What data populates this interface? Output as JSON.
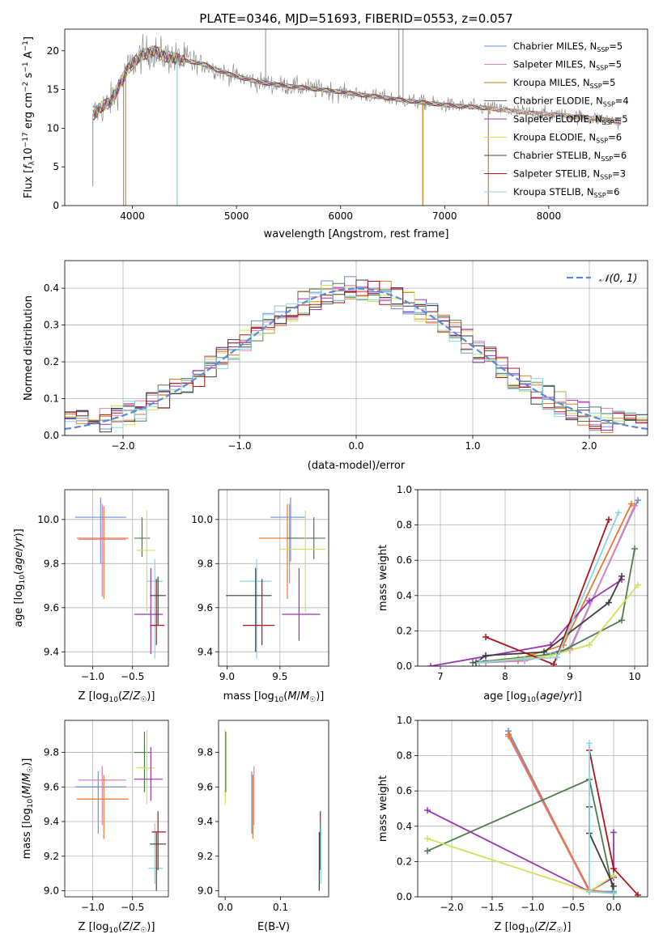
{
  "figure": {
    "title": "PLATE=0346, MJD=51693, FIBERID=0553, z=0.057"
  },
  "chart_data": [
    {
      "id": "spectrum",
      "type": "line",
      "xlabel": "wavelength [Angstrom, rest frame]",
      "ylabel": "Flux [f_λ 10^-17 erg cm^-2 s^-1 A^-1]",
      "xlim": [
        3350,
        8950
      ],
      "ylim": [
        0,
        22.8
      ],
      "xticks": [
        4000,
        5000,
        6000,
        7000,
        8000
      ],
      "yticks": [
        0,
        5,
        10,
        15,
        20
      ],
      "grid": false,
      "legend_position": "top-right",
      "data_color": "#808080",
      "series": [
        {
          "name": "Chabrier MILES, N_SSP=5",
          "color": "#6a8fd6"
        },
        {
          "name": "Salpeter MILES, N_SSP=5",
          "color": "#e07fb6"
        },
        {
          "name": "Kroupa MILES, N_SSP=5",
          "color": "#c07c10"
        },
        {
          "name": "Chabrier ELODIE, N_SSP=4",
          "color": "#4f7a4f"
        },
        {
          "name": "Salpeter ELODIE, N_SSP=5",
          "color": "#9b34b0"
        },
        {
          "name": "Kroupa ELODIE, N_SSP=6",
          "color": "#cde25a"
        },
        {
          "name": "Chabrier STELIB, N_SSP=6",
          "color": "#3d3d3d"
        },
        {
          "name": "Salpeter STELIB, N_SSP=3",
          "color": "#b0141a"
        },
        {
          "name": "Kroupa STELIB, N_SSP=6",
          "color": "#88d6dc"
        }
      ],
      "continuum": {
        "x": [
          3620,
          3700,
          3800,
          3900,
          3960,
          4050,
          4100,
          4200,
          4300,
          4400,
          4500,
          4600,
          4700,
          4800,
          4900,
          5000,
          5200,
          5400,
          5600,
          5800,
          6000,
          6200,
          6400,
          6600,
          6800,
          7000,
          7200,
          7400,
          7600,
          7800,
          8000,
          8200,
          8400,
          8600,
          8700
        ],
        "y": [
          11.8,
          12.6,
          13.6,
          16.2,
          17.8,
          18.9,
          19.6,
          19.9,
          19.4,
          19.0,
          18.8,
          18.5,
          18.2,
          17.6,
          17.1,
          16.7,
          16.0,
          15.6,
          15.3,
          15.0,
          14.7,
          14.3,
          14.0,
          13.6,
          13.3,
          13.0,
          12.8,
          12.6,
          12.3,
          12.0,
          11.8,
          11.6,
          11.3,
          11.0,
          10.8
        ]
      }
    },
    {
      "id": "residuals",
      "type": "line",
      "xlabel": "(data-model)/error",
      "ylabel": "Normed distribution",
      "xlim": [
        -2.5,
        2.5
      ],
      "ylim": [
        0,
        0.475
      ],
      "xticks": [
        -2,
        -1,
        0,
        1,
        2
      ],
      "yticks": [
        0.0,
        0.1,
        0.2,
        0.3,
        0.4
      ],
      "grid": true,
      "legend_position": "top-right",
      "gaussian_label": "𝒩(0, 1)",
      "gaussian_color": "#5b8ad6"
    },
    {
      "id": "age-vs-z",
      "type": "scatter",
      "xlabel": "Z [log10(Z/Z☉)]",
      "ylabel": "age  [log10(age/yr)]",
      "xlim": [
        -1.35,
        -0.05
      ],
      "ylim": [
        9.335,
        10.135
      ],
      "xticks": [
        -1.0,
        -0.5
      ],
      "yticks": [
        9.4,
        9.6,
        9.8,
        10.0
      ],
      "grid": true,
      "points": [
        {
          "c": "#6a8fd6",
          "x": -0.9,
          "xl": -1.22,
          "xh": -0.58,
          "y": 10.01,
          "yl": 9.8,
          "yh": 10.1
        },
        {
          "c": "#e07fb6",
          "x": -0.88,
          "xl": -1.18,
          "xh": -0.58,
          "y": 9.91,
          "yl": 9.65,
          "yh": 10.07
        },
        {
          "c": "#e8772a",
          "x": -0.86,
          "xl": -1.2,
          "xh": -0.55,
          "y": 9.915,
          "yl": 9.64,
          "yh": 10.06
        },
        {
          "c": "#4f7a4f",
          "x": -0.38,
          "xl": -0.48,
          "xh": -0.28,
          "y": 9.915,
          "yl": 9.83,
          "yh": 10.01
        },
        {
          "c": "#cde25a",
          "x": -0.32,
          "xl": -0.45,
          "xh": -0.22,
          "y": 9.86,
          "yl": 9.58,
          "yh": 10.04
        },
        {
          "c": "#88d6dc",
          "x": -0.22,
          "xl": -0.32,
          "xh": -0.12,
          "y": 9.72,
          "yl": 9.37,
          "yh": 9.82
        },
        {
          "c": "#9b34b0",
          "x": -0.27,
          "xl": -0.48,
          "xh": -0.12,
          "y": 9.57,
          "yl": 9.39,
          "yh": 9.78
        },
        {
          "c": "#3d3d3d",
          "x": -0.18,
          "xl": -0.28,
          "xh": -0.08,
          "y": 9.655,
          "yl": 9.52,
          "yh": 9.74
        },
        {
          "c": "#b0141a",
          "x": -0.2,
          "xl": -0.28,
          "xh": -0.1,
          "y": 9.52,
          "yl": 9.43,
          "yh": 9.73
        }
      ]
    },
    {
      "id": "age-vs-mass",
      "type": "scatter",
      "xlabel": "mass [log10(M/M☉)]",
      "ylabel": "",
      "xlim": [
        8.92,
        9.96
      ],
      "ylim": [
        9.335,
        10.135
      ],
      "xticks": [
        9.0,
        9.5
      ],
      "yticks": [
        9.4,
        9.6,
        9.8,
        10.0
      ],
      "grid": true,
      "points": [
        {
          "c": "#6a8fd6",
          "x": 9.6,
          "xl": 9.41,
          "xh": 9.74,
          "y": 10.01,
          "yl": 9.81,
          "yh": 10.1
        },
        {
          "c": "#e07fb6",
          "x": 9.59,
          "xl": 9.33,
          "xh": 9.72,
          "y": 9.915,
          "yl": 9.71,
          "yh": 10.07
        },
        {
          "c": "#e8772a",
          "x": 9.57,
          "xl": 9.3,
          "xh": 9.67,
          "y": 9.915,
          "yl": 9.64,
          "yh": 10.07
        },
        {
          "c": "#4f7a4f",
          "x": 9.82,
          "xl": 9.57,
          "xh": 9.93,
          "y": 9.915,
          "yl": 9.82,
          "yh": 10.01
        },
        {
          "c": "#cde25a",
          "x": 9.74,
          "xl": 9.5,
          "xh": 9.93,
          "y": 9.865,
          "yl": 9.58,
          "yh": 10.04
        },
        {
          "c": "#88d6dc",
          "x": 9.28,
          "xl": 9.12,
          "xh": 9.42,
          "y": 9.72,
          "yl": 9.37,
          "yh": 9.82
        },
        {
          "c": "#9b34b0",
          "x": 9.68,
          "xl": 9.52,
          "xh": 9.88,
          "y": 9.57,
          "yl": 9.45,
          "yh": 9.78
        },
        {
          "c": "#3d3d3d",
          "x": 9.27,
          "xl": 8.99,
          "xh": 9.42,
          "y": 9.655,
          "yl": 9.4,
          "yh": 9.78
        },
        {
          "c": "#b0141a",
          "x": 9.33,
          "xl": 9.15,
          "xh": 9.45,
          "y": 9.52,
          "yl": 9.43,
          "yh": 9.73
        }
      ]
    },
    {
      "id": "weight-vs-age",
      "type": "line",
      "xlabel": "age  [log10(age/yr)]",
      "ylabel": "mass weight",
      "xlim": [
        6.65,
        10.2
      ],
      "ylim": [
        0,
        1.0
      ],
      "xticks": [
        7,
        8,
        9,
        10
      ],
      "yticks": [
        0.0,
        0.2,
        0.4,
        0.6,
        0.8,
        1.0
      ],
      "grid": true,
      "series": [
        {
          "c": "#6a8fd6",
          "x": [
            7.7,
            8.2,
            9.0,
            10.05
          ],
          "y": [
            0.03,
            0.03,
            0.1,
            0.94
          ]
        },
        {
          "c": "#e07fb6",
          "x": [
            7.7,
            8.3,
            9.0,
            10.0
          ],
          "y": [
            0.02,
            0.03,
            0.09,
            0.91
          ]
        },
        {
          "c": "#e8772a",
          "x": [
            7.6,
            8.2,
            8.9,
            9.95
          ],
          "y": [
            0.02,
            0.04,
            0.12,
            0.92
          ]
        },
        {
          "c": "#4f7a4f",
          "x": [
            7.5,
            8.8,
            9.8,
            10.0
          ],
          "y": [
            0.02,
            0.07,
            0.26,
            0.665
          ]
        },
        {
          "c": "#9b34b0",
          "x": [
            6.85,
            8.7,
            9.3,
            9.8
          ],
          "y": [
            0.0,
            0.12,
            0.37,
            0.49
          ]
        },
        {
          "c": "#cde25a",
          "x": [
            7.6,
            8.7,
            9.3,
            10.05
          ],
          "y": [
            0.02,
            0.06,
            0.12,
            0.46
          ]
        },
        {
          "c": "#3d3d3d",
          "x": [
            7.55,
            7.7,
            8.6,
            9.6,
            9.8
          ],
          "y": [
            0.02,
            0.06,
            0.08,
            0.36,
            0.51
          ]
        },
        {
          "c": "#b0141a",
          "x": [
            7.7,
            8.75,
            9.6
          ],
          "y": [
            0.165,
            0.01,
            0.83
          ]
        },
        {
          "c": "#88d6dc",
          "x": [
            7.6,
            8.3,
            8.8,
            9.75
          ],
          "y": [
            0.02,
            0.04,
            0.05,
            0.87
          ]
        }
      ]
    },
    {
      "id": "mass-vs-z",
      "type": "scatter",
      "xlabel": "Z [log10(Z/Z☉)]",
      "ylabel": "mass [log10(M/M☉)]",
      "xlim": [
        -1.35,
        -0.05
      ],
      "ylim": [
        8.965,
        9.985
      ],
      "xticks": [
        -1.0,
        -0.5
      ],
      "yticks": [
        9.0,
        9.2,
        9.4,
        9.6,
        9.8
      ],
      "grid": true,
      "points": [
        {
          "c": "#6a8fd6",
          "x": -0.93,
          "xl": -1.22,
          "xh": -0.58,
          "y": 9.6,
          "yl": 9.33,
          "yh": 9.69
        },
        {
          "c": "#e07fb6",
          "x": -0.88,
          "xl": -1.18,
          "xh": -0.58,
          "y": 9.64,
          "yl": 9.38,
          "yh": 9.72
        },
        {
          "c": "#e8772a",
          "x": -0.86,
          "xl": -1.2,
          "xh": -0.55,
          "y": 9.53,
          "yl": 9.3,
          "yh": 9.67
        },
        {
          "c": "#4f7a4f",
          "x": -0.35,
          "xl": -0.48,
          "xh": -0.28,
          "y": 9.8,
          "yl": 9.57,
          "yh": 9.92
        },
        {
          "c": "#cde25a",
          "x": -0.32,
          "xl": -0.45,
          "xh": -0.22,
          "y": 9.71,
          "yl": 9.5,
          "yh": 9.93
        },
        {
          "c": "#9b34b0",
          "x": -0.27,
          "xl": -0.48,
          "xh": -0.12,
          "y": 9.645,
          "yl": 9.52,
          "yh": 9.83
        },
        {
          "c": "#88d6dc",
          "x": -0.22,
          "xl": -0.3,
          "xh": -0.12,
          "y": 9.13,
          "yl": 9.04,
          "yh": 9.39
        },
        {
          "c": "#3d3d3d",
          "x": -0.2,
          "xl": -0.28,
          "xh": -0.08,
          "y": 9.27,
          "yl": 9.0,
          "yh": 9.34
        },
        {
          "c": "#b0141a",
          "x": -0.18,
          "xl": -0.26,
          "xh": -0.08,
          "y": 9.34,
          "yl": 9.12,
          "yh": 9.46
        }
      ]
    },
    {
      "id": "mass-vs-ebv",
      "type": "scatter",
      "xlabel": "E(B-V)",
      "ylabel": "",
      "xlim": [
        -0.012,
        0.187
      ],
      "ylim": [
        8.965,
        9.985
      ],
      "xticks": [
        0.0,
        0.1
      ],
      "yticks": [
        9.0,
        9.2,
        9.4,
        9.6,
        9.8
      ],
      "grid": false,
      "points": [
        {
          "c": "#cde25a",
          "x": 0.0,
          "xl": 0.0,
          "xh": 0.0,
          "y": 9.71,
          "yl": 9.5,
          "yh": 9.93
        },
        {
          "c": "#4f7a4f",
          "x": 0.001,
          "xl": 0.001,
          "xh": 0.001,
          "y": 9.8,
          "yl": 9.57,
          "yh": 9.92
        },
        {
          "c": "#e07fb6",
          "x": 0.052,
          "xl": 0.052,
          "xh": 0.052,
          "y": 9.64,
          "yl": 9.38,
          "yh": 9.72
        },
        {
          "c": "#6a8fd6",
          "x": 0.048,
          "xl": 0.048,
          "xh": 0.048,
          "y": 9.6,
          "yl": 9.33,
          "yh": 9.69
        },
        {
          "c": "#e8772a",
          "x": 0.05,
          "xl": 0.05,
          "xh": 0.05,
          "y": 9.53,
          "yl": 9.3,
          "yh": 9.67
        },
        {
          "c": "#3d3d3d",
          "x": 0.17,
          "xl": 0.17,
          "xh": 0.17,
          "y": 9.27,
          "yl": 9.0,
          "yh": 9.34
        },
        {
          "c": "#b0141a",
          "x": 0.172,
          "xl": 0.172,
          "xh": 0.172,
          "y": 9.34,
          "yl": 9.12,
          "yh": 9.46
        },
        {
          "c": "#88d6dc",
          "x": 0.173,
          "xl": 0.173,
          "xh": 0.173,
          "y": 9.13,
          "yl": 9.04,
          "yh": 9.39
        }
      ]
    },
    {
      "id": "weight-vs-z",
      "type": "line",
      "xlabel": "Z [log10(Z/Z☉)]",
      "ylabel": "mass weight",
      "xlim": [
        -2.42,
        0.42
      ],
      "ylim": [
        0,
        1.0
      ],
      "xticks": [
        -2.0,
        -1.5,
        -1.0,
        -0.5,
        0.0
      ],
      "yticks": [
        0.0,
        0.2,
        0.4,
        0.6,
        0.8,
        1.0
      ],
      "grid": true,
      "series": [
        {
          "c": "#6a8fd6",
          "x": [
            -1.3,
            -0.3,
            0.0
          ],
          "y": [
            0.94,
            0.03,
            0.03
          ]
        },
        {
          "c": "#e07fb6",
          "x": [
            -1.3,
            -0.3,
            0.0
          ],
          "y": [
            0.91,
            0.03,
            0.02
          ]
        },
        {
          "c": "#e8772a",
          "x": [
            -1.3,
            -0.3,
            0.0
          ],
          "y": [
            0.92,
            0.04,
            0.02
          ]
        },
        {
          "c": "#4f7a4f",
          "x": [
            -2.3,
            -0.3,
            0.0
          ],
          "y": [
            0.26,
            0.665,
            0.02
          ]
        },
        {
          "c": "#9b34b0",
          "x": [
            -2.3,
            -0.3,
            0.0,
            0.0
          ],
          "y": [
            0.49,
            0.03,
            0.11,
            0.365
          ]
        },
        {
          "c": "#cde25a",
          "x": [
            -2.3,
            -0.3,
            0.0
          ],
          "y": [
            0.33,
            0.03,
            0.12
          ]
        },
        {
          "c": "#3d3d3d",
          "x": [
            -0.3,
            -0.3,
            0.0
          ],
          "y": [
            0.51,
            0.36,
            0.06
          ]
        },
        {
          "c": "#b0141a",
          "x": [
            -0.3,
            0.0,
            0.3
          ],
          "y": [
            0.83,
            0.16,
            0.01
          ]
        },
        {
          "c": "#88d6dc",
          "x": [
            -0.3,
            -0.3,
            0.0
          ],
          "y": [
            0.87,
            0.03,
            0.02
          ]
        }
      ]
    }
  ]
}
